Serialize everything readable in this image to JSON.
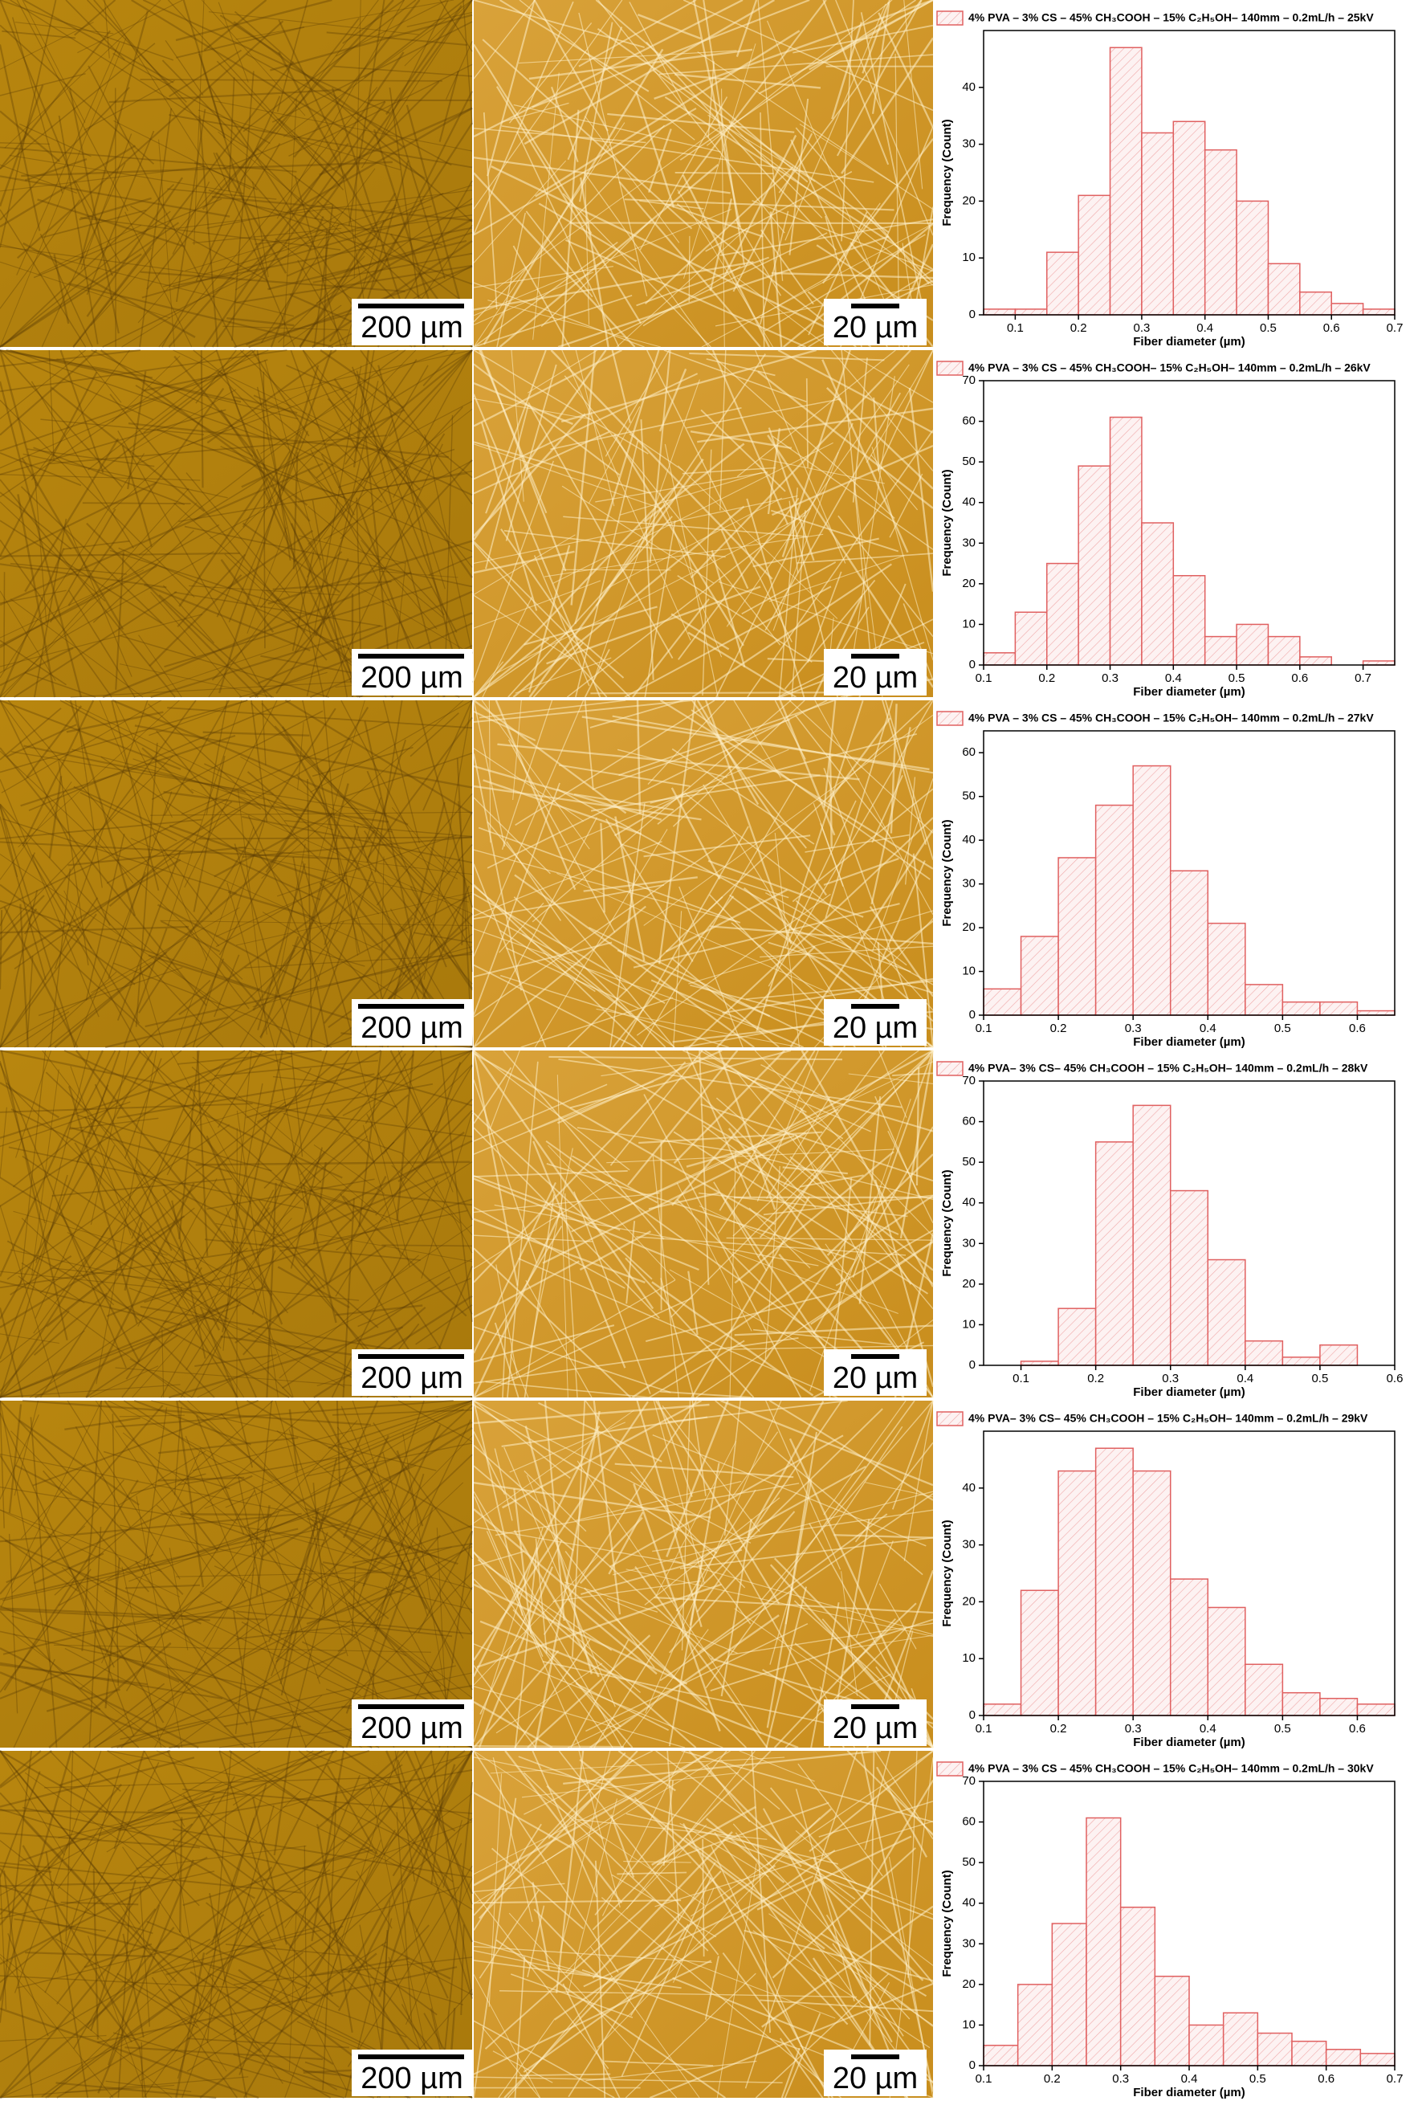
{
  "panels": [
    {
      "left_scale": "200 µm",
      "right_scale": "20 µm"
    },
    {
      "left_scale": "200 µm",
      "right_scale": "20 µm"
    },
    {
      "left_scale": "200 µm",
      "right_scale": "20 µm"
    },
    {
      "left_scale": "200 µm",
      "right_scale": "20 µm"
    },
    {
      "left_scale": "200 µm",
      "right_scale": "20 µm"
    },
    {
      "left_scale": "200 µm",
      "right_scale": "20 µm"
    }
  ],
  "chart_data": [
    {
      "type": "histogram",
      "xlabel": "Fiber diameter (µm)",
      "ylabel": "Frequency (Count)",
      "bins": [
        0.05,
        0.1,
        0.15,
        0.2,
        0.25,
        0.3,
        0.35,
        0.4,
        0.45,
        0.5,
        0.55,
        0.6,
        0.65,
        0.7
      ],
      "series": [
        {
          "name": "4% PVA – 3% CS – 45% CH₃COOH – 15% C₂H₅OH– 140mm – 0.2mL/h – 25kV",
          "color": "#e06060",
          "values": [
            1,
            1,
            11,
            21,
            47,
            32,
            34,
            29,
            20,
            9,
            4,
            2,
            1
          ]
        }
      ],
      "xlim": [
        0.05,
        0.7
      ],
      "xticks": [
        0.1,
        0.2,
        0.3,
        0.4,
        0.5,
        0.6,
        0.7
      ],
      "ylim": [
        0,
        50
      ],
      "yticks": [
        0,
        10,
        20,
        30,
        40
      ]
    },
    {
      "type": "histogram",
      "xlabel": "Fiber diameter (µm)",
      "ylabel": "Frequency (Count)",
      "bins": [
        0.1,
        0.15,
        0.2,
        0.25,
        0.3,
        0.35,
        0.4,
        0.45,
        0.5,
        0.55,
        0.6,
        0.65,
        0.7,
        0.75
      ],
      "series": [
        {
          "name": "4% PVA – 3% CS – 45% CH₃COOH– 15% C₂H₅OH– 140mm – 0.2mL/h – 26kV",
          "color": "#e06060",
          "values": [
            3,
            13,
            25,
            49,
            61,
            35,
            22,
            7,
            10,
            7,
            2,
            0,
            1
          ]
        }
      ],
      "xlim": [
        0.1,
        0.75
      ],
      "xticks": [
        0.1,
        0.2,
        0.3,
        0.4,
        0.5,
        0.6,
        0.7
      ],
      "ylim": [
        0,
        70
      ],
      "yticks": [
        0,
        10,
        20,
        30,
        40,
        50,
        60,
        70
      ]
    },
    {
      "type": "histogram",
      "xlabel": "Fiber diameter (µm)",
      "ylabel": "Frequency (Count)",
      "bins": [
        0.1,
        0.15,
        0.2,
        0.25,
        0.3,
        0.35,
        0.4,
        0.45,
        0.5,
        0.55,
        0.6,
        0.65
      ],
      "series": [
        {
          "name": "4% PVA – 3% CS – 45% CH₃COOH – 15% C₂H₅OH– 140mm – 0.2mL/h – 27kV",
          "color": "#e06060",
          "values": [
            6,
            18,
            36,
            48,
            57,
            33,
            21,
            7,
            3,
            3,
            1
          ]
        }
      ],
      "xlim": [
        0.1,
        0.65
      ],
      "xticks": [
        0.1,
        0.2,
        0.3,
        0.4,
        0.5,
        0.6
      ],
      "ylim": [
        0,
        65
      ],
      "yticks": [
        0,
        10,
        20,
        30,
        40,
        50,
        60
      ]
    },
    {
      "type": "histogram",
      "xlabel": "Fiber diameter (µm)",
      "ylabel": "Frequency (Count)",
      "bins": [
        0.1,
        0.15,
        0.2,
        0.25,
        0.3,
        0.35,
        0.4,
        0.45,
        0.5,
        0.55
      ],
      "series": [
        {
          "name": "4% PVA– 3% CS– 45% CH₃COOH – 15% C₂H₅OH– 140mm – 0.2mL/h – 28kV",
          "color": "#e06060",
          "values": [
            1,
            14,
            55,
            64,
            43,
            26,
            6,
            2,
            5
          ]
        }
      ],
      "xlim": [
        0.05,
        0.6
      ],
      "xticks": [
        0.1,
        0.2,
        0.3,
        0.4,
        0.5,
        0.6
      ],
      "ylim": [
        0,
        70
      ],
      "yticks": [
        0,
        10,
        20,
        30,
        40,
        50,
        60,
        70
      ]
    },
    {
      "type": "histogram",
      "xlabel": "Fiber diameter (µm)",
      "ylabel": "Frequency (Count)",
      "bins": [
        0.1,
        0.15,
        0.2,
        0.25,
        0.3,
        0.35,
        0.4,
        0.45,
        0.5,
        0.55,
        0.6,
        0.65
      ],
      "series": [
        {
          "name": "4% PVA– 3% CS– 45% CH₃COOH – 15% C₂H₅OH– 140mm – 0.2mL/h – 29kV",
          "color": "#e06060",
          "values": [
            2,
            22,
            43,
            47,
            43,
            24,
            19,
            9,
            4,
            3,
            2
          ]
        }
      ],
      "xlim": [
        0.1,
        0.65
      ],
      "xticks": [
        0.1,
        0.2,
        0.3,
        0.4,
        0.5,
        0.6
      ],
      "ylim": [
        0,
        50
      ],
      "yticks": [
        0,
        10,
        20,
        30,
        40
      ]
    },
    {
      "type": "histogram",
      "xlabel": "Fiber diameter (µm)",
      "ylabel": "Frequency (Count)",
      "bins": [
        0.1,
        0.15,
        0.2,
        0.25,
        0.3,
        0.35,
        0.4,
        0.45,
        0.5,
        0.55,
        0.6,
        0.65,
        0.7
      ],
      "series": [
        {
          "name": "4% PVA – 3% CS – 45% CH₃COOH – 15% C₂H₅OH– 140mm – 0.2mL/h – 30kV",
          "color": "#e06060",
          "values": [
            5,
            20,
            35,
            61,
            39,
            22,
            10,
            13,
            8,
            6,
            4,
            3
          ]
        }
      ],
      "xlim": [
        0.1,
        0.7
      ],
      "xticks": [
        0.1,
        0.2,
        0.3,
        0.4,
        0.5,
        0.6,
        0.7
      ],
      "ylim": [
        0,
        70
      ],
      "yticks": [
        0,
        10,
        20,
        30,
        40,
        50,
        60,
        70
      ]
    }
  ]
}
